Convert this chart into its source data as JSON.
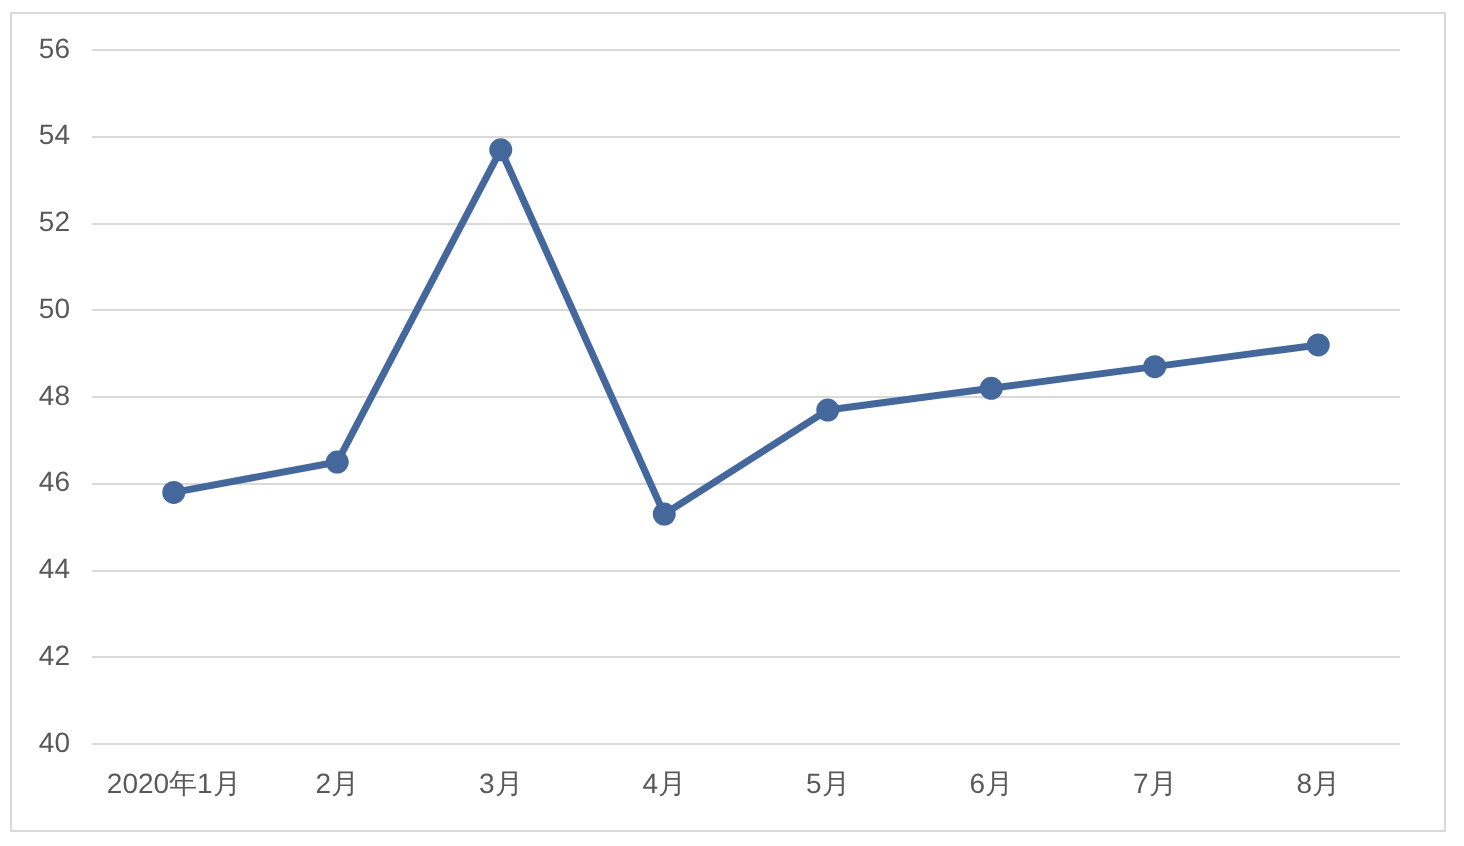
{
  "chart_data": {
    "type": "line",
    "categories": [
      "2020年1月",
      "2月",
      "3月",
      "4月",
      "5月",
      "6月",
      "7月",
      "8月"
    ],
    "values": [
      45.8,
      46.5,
      53.7,
      45.3,
      47.7,
      48.2,
      48.7,
      49.2
    ],
    "color": "#44679c",
    "ylim": [
      40,
      56
    ],
    "yticks": [
      40,
      42,
      44,
      46,
      48,
      50,
      52,
      54,
      56
    ],
    "grid": "y",
    "marker": "circle"
  }
}
